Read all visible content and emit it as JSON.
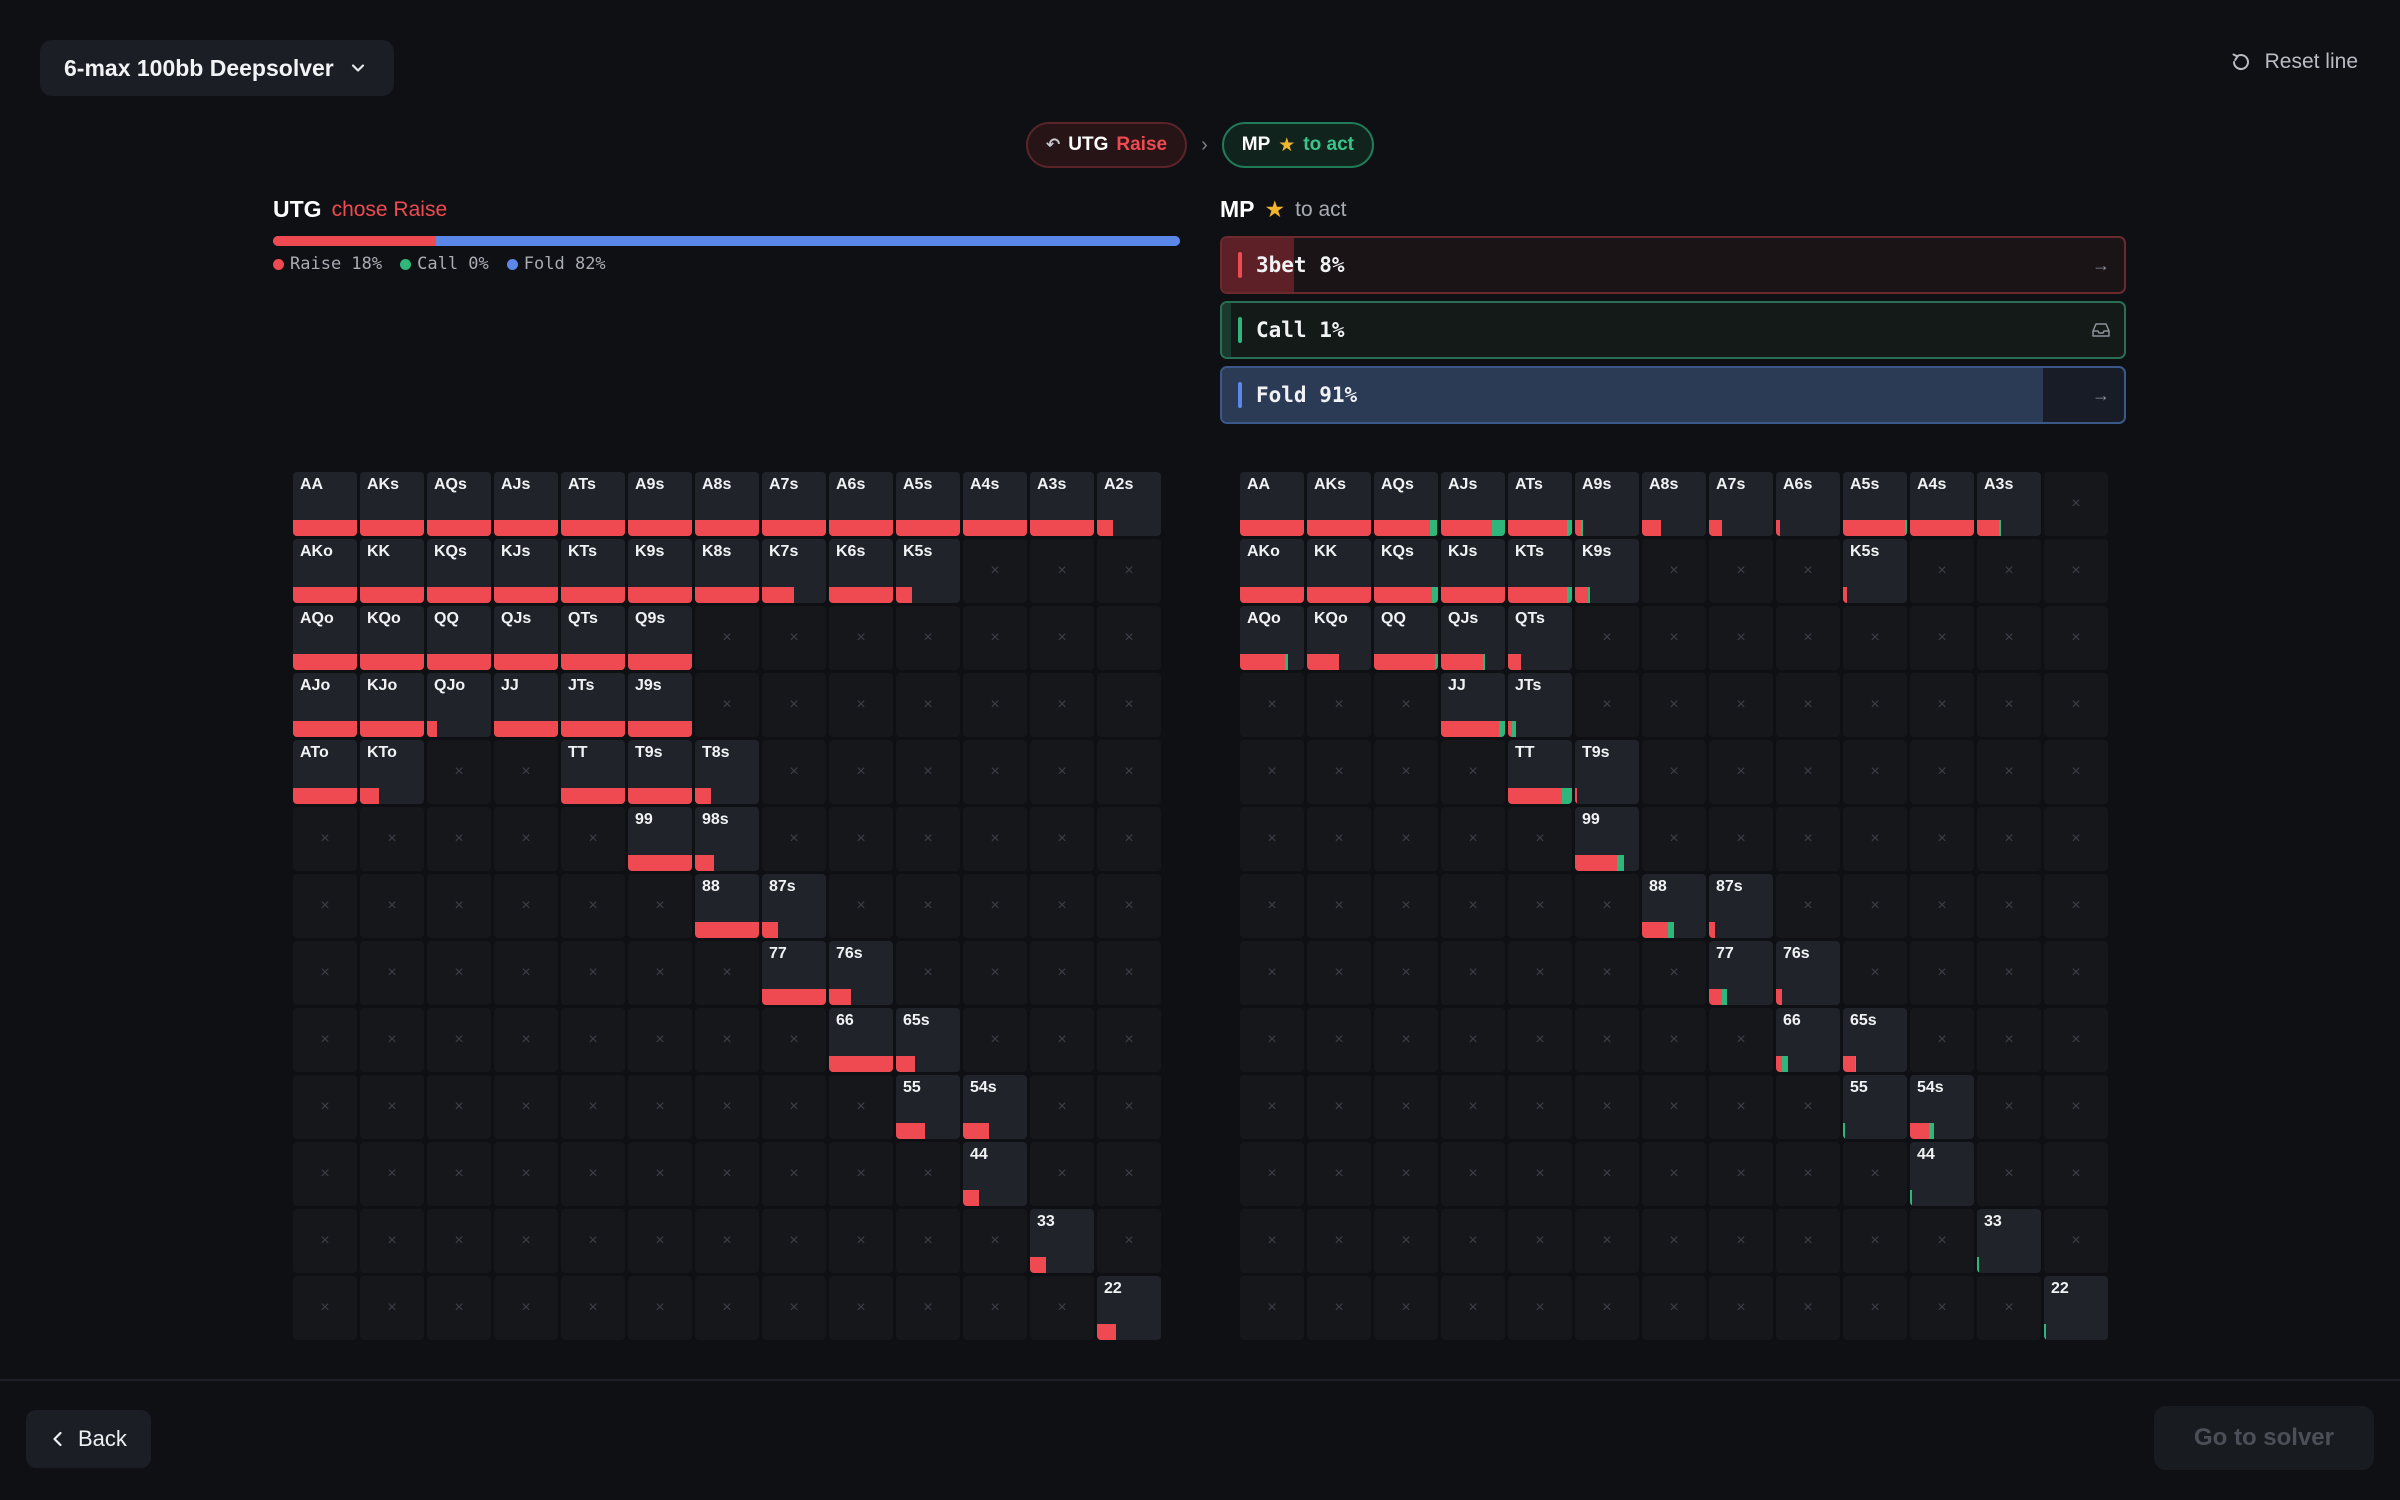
{
  "header": {
    "preset_label": "6-max 100bb Deepsolver",
    "reset_label": "Reset line"
  },
  "breadcrumb": {
    "steps": [
      {
        "position": "UTG",
        "action": "Raise"
      },
      {
        "position": "MP",
        "action": "to act"
      }
    ]
  },
  "left_panel": {
    "position": "UTG",
    "chose_label": "chose Raise",
    "frequencies": {
      "raise": 18,
      "call": 0,
      "fold": 82
    },
    "legend": [
      {
        "label": "Raise 18%",
        "color": "#ef4a51"
      },
      {
        "label": "Call 0%",
        "color": "#2fb67a"
      },
      {
        "label": "Fold 82%",
        "color": "#5a87e8"
      }
    ]
  },
  "right_panel": {
    "position": "MP",
    "status": "to act",
    "options": [
      {
        "label": "3bet 8%",
        "value": 8,
        "color": "#ef4a51",
        "fill": "#5c2026"
      },
      {
        "label": "Call 1%",
        "value": 1,
        "color": "#2fb67a",
        "fill": "#1b3a2f"
      },
      {
        "label": "Fold 91%",
        "value": 91,
        "color": "#5a87e8",
        "fill": "#2b3a55"
      }
    ]
  },
  "colors": {
    "raise": "#ef4a51",
    "call": "#2fb67a",
    "fold": "#5a87e8"
  },
  "ranks": [
    "A",
    "K",
    "Q",
    "J",
    "T",
    "9",
    "8",
    "7",
    "6",
    "5",
    "4",
    "3",
    "2"
  ],
  "utg_range": {
    "AA": [
      100,
      0
    ],
    "AKs": [
      100,
      0
    ],
    "AQs": [
      100,
      0
    ],
    "AJs": [
      100,
      0
    ],
    "ATs": [
      100,
      0
    ],
    "A9s": [
      100,
      0
    ],
    "A8s": [
      100,
      0
    ],
    "A7s": [
      100,
      0
    ],
    "A6s": [
      100,
      0
    ],
    "A5s": [
      100,
      0
    ],
    "A4s": [
      100,
      0
    ],
    "A3s": [
      100,
      0
    ],
    "A2s": [
      25,
      0
    ],
    "AKo": [
      100,
      0
    ],
    "KK": [
      100,
      0
    ],
    "KQs": [
      100,
      0
    ],
    "KJs": [
      100,
      0
    ],
    "KTs": [
      100,
      0
    ],
    "K9s": [
      100,
      0
    ],
    "K8s": [
      100,
      0
    ],
    "K7s": [
      50,
      0
    ],
    "K6s": [
      100,
      0
    ],
    "K5s": [
      25,
      0
    ],
    "AQo": [
      100,
      0
    ],
    "KQo": [
      100,
      0
    ],
    "QQ": [
      100,
      0
    ],
    "QJs": [
      100,
      0
    ],
    "QTs": [
      100,
      0
    ],
    "Q9s": [
      100,
      0
    ],
    "AJo": [
      100,
      0
    ],
    "KJo": [
      100,
      0
    ],
    "QJo": [
      15,
      0
    ],
    "JJ": [
      100,
      0
    ],
    "JTs": [
      100,
      0
    ],
    "J9s": [
      100,
      0
    ],
    "ATo": [
      100,
      0
    ],
    "KTo": [
      30,
      0
    ],
    "TT": [
      100,
      0
    ],
    "T9s": [
      100,
      0
    ],
    "T8s": [
      25,
      0
    ],
    "99": [
      100,
      0
    ],
    "98s": [
      30,
      0
    ],
    "88": [
      100,
      0
    ],
    "87s": [
      25,
      0
    ],
    "77": [
      100,
      0
    ],
    "76s": [
      35,
      0
    ],
    "66": [
      100,
      0
    ],
    "65s": [
      30,
      0
    ],
    "55": [
      45,
      0
    ],
    "54s": [
      40,
      0
    ],
    "44": [
      25,
      0
    ],
    "33": [
      25,
      0
    ],
    "22": [
      30,
      0
    ]
  },
  "mp_range": {
    "AA": [
      100,
      0
    ],
    "AKs": [
      100,
      0
    ],
    "AQs": [
      88,
      10
    ],
    "AJs": [
      80,
      20
    ],
    "ATs": [
      92,
      8
    ],
    "A9s": [
      10,
      3
    ],
    "A8s": [
      30,
      0
    ],
    "A7s": [
      20,
      0
    ],
    "A6s": [
      6,
      0
    ],
    "A5s": [
      97,
      3
    ],
    "A4s": [
      100,
      0
    ],
    "A3s": [
      35,
      3
    ],
    "A2s": null,
    "AKo": [
      100,
      0
    ],
    "KK": [
      100,
      0
    ],
    "KQs": [
      90,
      10
    ],
    "KJs": [
      100,
      0
    ],
    "KTs": [
      92,
      8
    ],
    "K9s": [
      20,
      3
    ],
    "K5s": [
      6,
      0
    ],
    "AQo": [
      70,
      5
    ],
    "KQo": [
      50,
      0
    ],
    "QQ": [
      95,
      5
    ],
    "QJs": [
      65,
      3
    ],
    "QTs": [
      20,
      0
    ],
    "JJ": [
      90,
      10
    ],
    "JTs": [
      6,
      6
    ],
    "TT": [
      85,
      15
    ],
    "T9s": [
      3,
      0
    ],
    "99": [
      65,
      12
    ],
    "88": [
      40,
      10
    ],
    "87s": [
      10,
      0
    ],
    "77": [
      20,
      8
    ],
    "76s": [
      10,
      0
    ],
    "66": [
      10,
      8
    ],
    "65s": [
      18,
      3
    ],
    "55": [
      0,
      3
    ],
    "54s": [
      30,
      8
    ],
    "44": [
      0,
      3
    ],
    "33": [
      0,
      3
    ],
    "22": [
      0,
      3
    ]
  },
  "footer": {
    "back_label": "Back",
    "go_label": "Go to solver"
  }
}
